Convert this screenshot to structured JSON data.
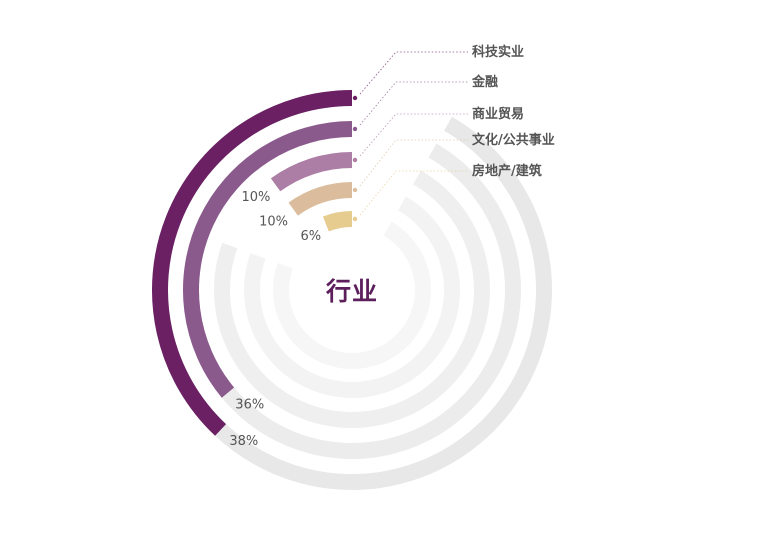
{
  "chart_data": {
    "type": "radial-bar",
    "title": "行业",
    "max": 100,
    "series": [
      {
        "name": "科技实业",
        "value": 38,
        "label": "38%",
        "color": "#6a2063"
      },
      {
        "name": "金融",
        "value": 36,
        "label": "36%",
        "color": "#8a5a8c"
      },
      {
        "name": "商业贸易",
        "value": 10,
        "label": "10%",
        "color": "#ac7da5"
      },
      {
        "name": "文化/公共事业",
        "value": 10,
        "label": "10%",
        "color": "#dbbd9d"
      },
      {
        "name": "房地产/建筑",
        "value": 6,
        "label": "6%",
        "color": "#e6cc8f"
      }
    ],
    "track_colors": [
      "#e8e8e8",
      "#ececec",
      "#efefef",
      "#f3f3f3",
      "#f6f6f6"
    ],
    "legend_position": "top-right"
  }
}
